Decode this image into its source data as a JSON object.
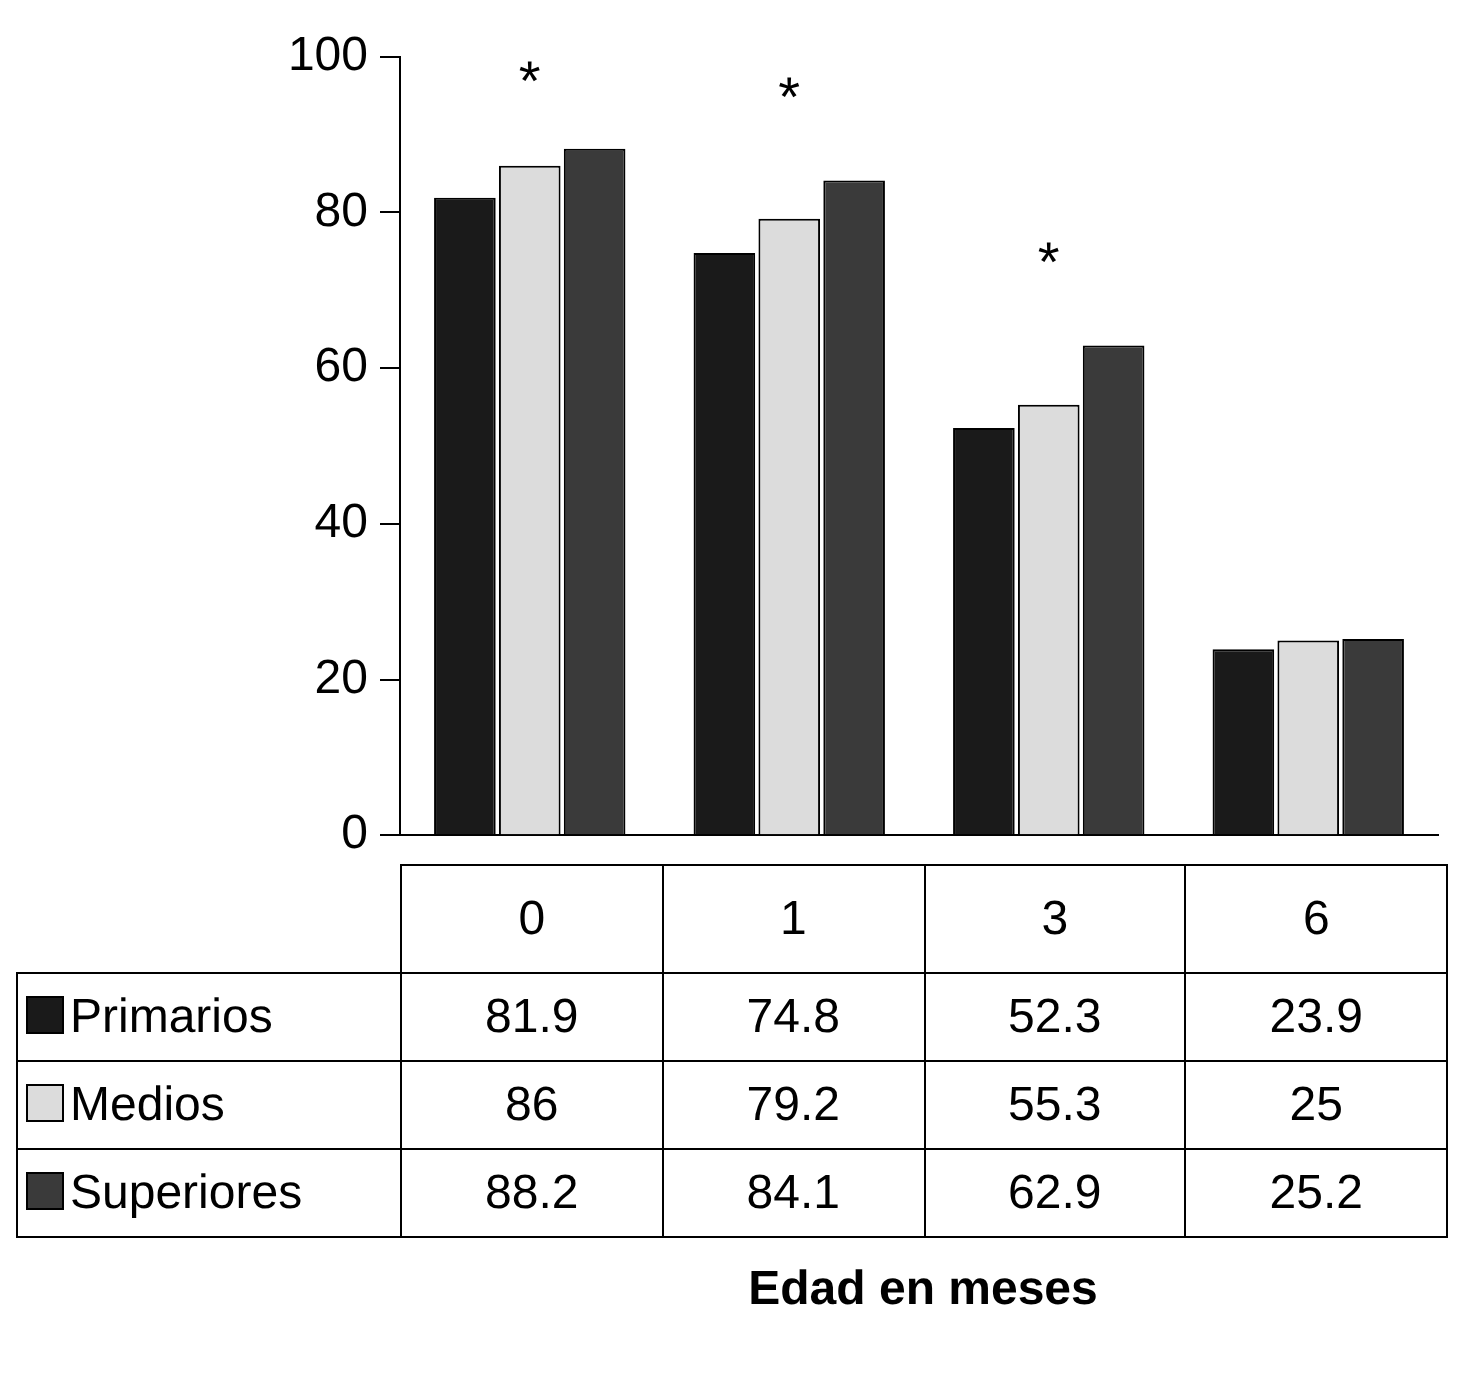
{
  "chart_data": {
    "type": "bar",
    "categories": [
      "0",
      "1",
      "3",
      "6"
    ],
    "series": [
      {
        "name": "Primarios",
        "color": "#1a1a1a",
        "values": [
          81.9,
          74.8,
          52.3,
          23.9
        ]
      },
      {
        "name": "Medios",
        "color": "#dcdcdc",
        "values": [
          86,
          79.2,
          55.3,
          25
        ]
      },
      {
        "name": "Superiores",
        "color": "#3a3a3a",
        "values": [
          88.2,
          84.1,
          62.9,
          25.2
        ]
      }
    ],
    "ylim": [
      0,
      100
    ],
    "yticks": [
      0,
      20,
      40,
      60,
      80,
      100
    ],
    "grid": false,
    "legend": "bottom left",
    "data_labels": true,
    "annotations": [
      "Edad en meses",
      "*",
      "*",
      "*"
    ]
  }
}
